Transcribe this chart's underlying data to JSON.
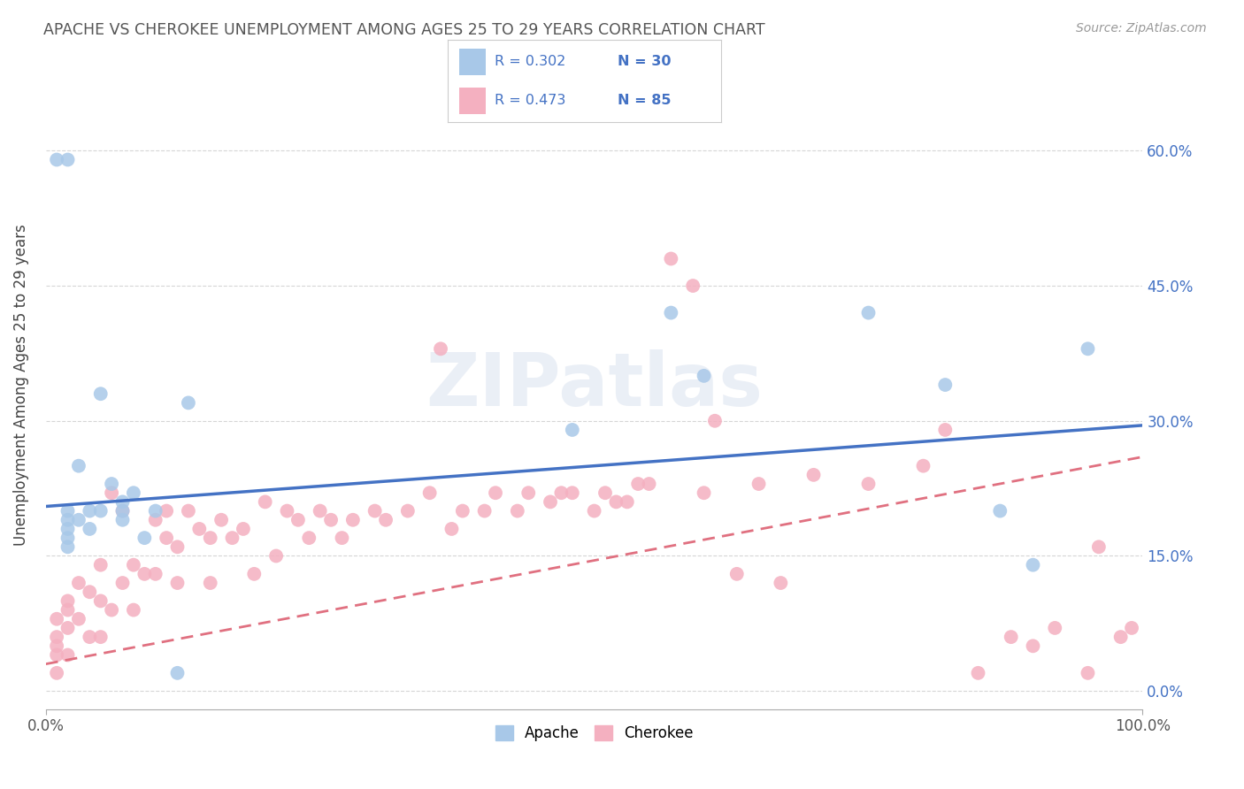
{
  "title": "APACHE VS CHEROKEE UNEMPLOYMENT AMONG AGES 25 TO 29 YEARS CORRELATION CHART",
  "source": "Source: ZipAtlas.com",
  "ylabel": "Unemployment Among Ages 25 to 29 years",
  "xlim": [
    0.0,
    1.0
  ],
  "ylim": [
    -0.02,
    0.7
  ],
  "xticks": [
    0.0,
    1.0
  ],
  "xticklabels": [
    "0.0%",
    "100.0%"
  ],
  "yticks": [
    0.0,
    0.15,
    0.3,
    0.45,
    0.6
  ],
  "yticklabels": [
    "0.0%",
    "15.0%",
    "30.0%",
    "45.0%",
    "60.0%"
  ],
  "apache_R": 0.302,
  "apache_N": 30,
  "cherokee_R": 0.473,
  "cherokee_N": 85,
  "apache_color": "#a8c8e8",
  "cherokee_color": "#f4b0c0",
  "apache_line_color": "#4472c4",
  "cherokee_line_color": "#e07080",
  "background_color": "#ffffff",
  "grid_color": "#cccccc",
  "watermark": "ZIPatlas",
  "apache_line_x0": 0.0,
  "apache_line_y0": 0.205,
  "apache_line_x1": 1.0,
  "apache_line_y1": 0.295,
  "cherokee_line_x0": 0.0,
  "cherokee_line_y0": 0.03,
  "cherokee_line_x1": 1.0,
  "cherokee_line_y1": 0.26,
  "apache_x": [
    0.01,
    0.02,
    0.02,
    0.02,
    0.02,
    0.02,
    0.02,
    0.03,
    0.03,
    0.04,
    0.04,
    0.05,
    0.05,
    0.06,
    0.07,
    0.07,
    0.07,
    0.08,
    0.09,
    0.1,
    0.12,
    0.13,
    0.48,
    0.57,
    0.6,
    0.75,
    0.82,
    0.87,
    0.9,
    0.95
  ],
  "apache_y": [
    0.59,
    0.59,
    0.2,
    0.19,
    0.18,
    0.17,
    0.16,
    0.25,
    0.19,
    0.18,
    0.2,
    0.33,
    0.2,
    0.23,
    0.2,
    0.19,
    0.21,
    0.22,
    0.17,
    0.2,
    0.02,
    0.32,
    0.29,
    0.42,
    0.35,
    0.42,
    0.34,
    0.2,
    0.14,
    0.38
  ],
  "cherokee_x": [
    0.01,
    0.01,
    0.01,
    0.01,
    0.01,
    0.02,
    0.02,
    0.02,
    0.02,
    0.03,
    0.03,
    0.04,
    0.04,
    0.05,
    0.05,
    0.05,
    0.06,
    0.06,
    0.07,
    0.07,
    0.08,
    0.08,
    0.09,
    0.1,
    0.1,
    0.11,
    0.11,
    0.12,
    0.12,
    0.13,
    0.14,
    0.15,
    0.15,
    0.16,
    0.17,
    0.18,
    0.19,
    0.2,
    0.21,
    0.22,
    0.23,
    0.24,
    0.25,
    0.26,
    0.27,
    0.28,
    0.3,
    0.31,
    0.33,
    0.35,
    0.37,
    0.38,
    0.4,
    0.41,
    0.43,
    0.44,
    0.46,
    0.47,
    0.48,
    0.5,
    0.51,
    0.52,
    0.53,
    0.54,
    0.55,
    0.57,
    0.59,
    0.6,
    0.61,
    0.63,
    0.65,
    0.67,
    0.7,
    0.75,
    0.8,
    0.82,
    0.85,
    0.88,
    0.9,
    0.92,
    0.95,
    0.96,
    0.98,
    0.99,
    0.36
  ],
  "cherokee_y": [
    0.08,
    0.06,
    0.05,
    0.04,
    0.02,
    0.1,
    0.09,
    0.07,
    0.04,
    0.12,
    0.08,
    0.11,
    0.06,
    0.14,
    0.1,
    0.06,
    0.22,
    0.09,
    0.2,
    0.12,
    0.14,
    0.09,
    0.13,
    0.19,
    0.13,
    0.2,
    0.17,
    0.16,
    0.12,
    0.2,
    0.18,
    0.17,
    0.12,
    0.19,
    0.17,
    0.18,
    0.13,
    0.21,
    0.15,
    0.2,
    0.19,
    0.17,
    0.2,
    0.19,
    0.17,
    0.19,
    0.2,
    0.19,
    0.2,
    0.22,
    0.18,
    0.2,
    0.2,
    0.22,
    0.2,
    0.22,
    0.21,
    0.22,
    0.22,
    0.2,
    0.22,
    0.21,
    0.21,
    0.23,
    0.23,
    0.48,
    0.45,
    0.22,
    0.3,
    0.13,
    0.23,
    0.12,
    0.24,
    0.23,
    0.25,
    0.29,
    0.02,
    0.06,
    0.05,
    0.07,
    0.02,
    0.16,
    0.06,
    0.07,
    0.38
  ]
}
